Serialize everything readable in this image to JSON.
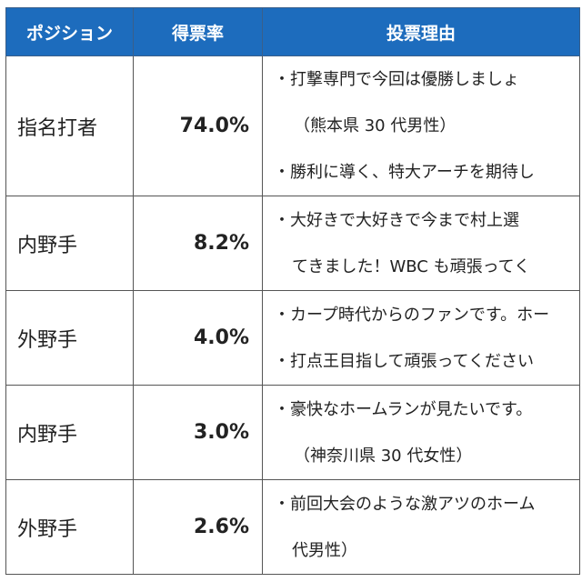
{
  "header": {
    "position": "ポジション",
    "rate": "得票率",
    "reason": "投票理由"
  },
  "colors": {
    "header_bg": "#1d6cbd",
    "header_text": "#ffffff"
  },
  "rows": [
    {
      "position": "指名打者",
      "rate": "74.0%",
      "reasons": [
        "・打撃専門で今回は優勝しましょ",
        "（熊本県 30 代男性）",
        "・勝利に導く、特大アーチを期待し"
      ]
    },
    {
      "position": "内野手",
      "rate": "8.2%",
      "reasons": [
        "・大好きで大好きで今まで村上選",
        "てきました！WBC も頑張ってく"
      ]
    },
    {
      "position": "外野手",
      "rate": "4.0%",
      "reasons": [
        "・カープ時代からのファンです。ホー",
        "・打点王目指して頑張ってください"
      ]
    },
    {
      "position": "内野手",
      "rate": "3.0%",
      "reasons": [
        "・豪快なホームランが見たいです。",
        "（神奈川県 30 代女性）"
      ]
    },
    {
      "position": "外野手",
      "rate": "2.6%",
      "reasons": [
        "・前回大会のような激アツのホーム",
        "代男性）"
      ]
    }
  ]
}
